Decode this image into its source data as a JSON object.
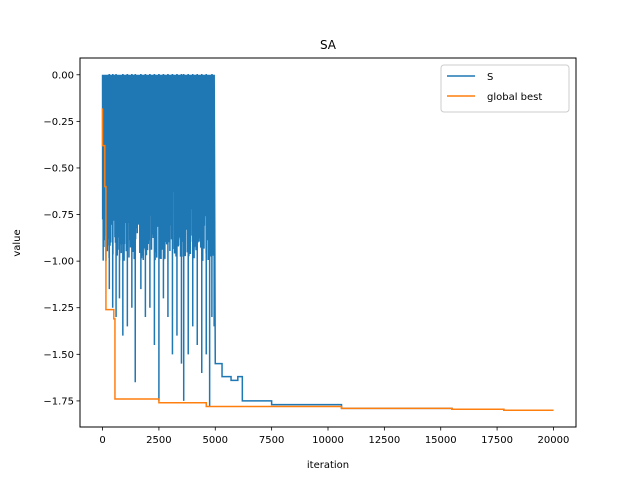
{
  "chart_data": {
    "type": "line",
    "title": "SA",
    "xlabel": "iteration",
    "ylabel": "value",
    "xlim": [
      -1000,
      21000
    ],
    "ylim": [
      -1.89,
      0.09
    ],
    "xticks": [
      0,
      2500,
      5000,
      7500,
      10000,
      12500,
      15000,
      17500,
      20000
    ],
    "xtick_labels": [
      "0",
      "2500",
      "5000",
      "7500",
      "10000",
      "12500",
      "15000",
      "17500",
      "20000"
    ],
    "yticks": [
      0.0,
      -0.25,
      -0.5,
      -0.75,
      -1.0,
      -1.25,
      -1.5,
      -1.75
    ],
    "ytick_labels": [
      "0.00",
      "−0.25",
      "−0.50",
      "−0.75",
      "−1.00",
      "−1.25",
      "−1.50",
      "−1.75"
    ],
    "grid": false,
    "legend_position": "top-right",
    "series": [
      {
        "name": "S",
        "color": "#1f77b4",
        "style": "dense-oscillation",
        "dense_region": {
          "x_start": 0,
          "x_end": 4900,
          "y_top": 0.0,
          "y_typical_min": -1.0
        },
        "spikes": [
          [
            150,
            -1.0
          ],
          [
            300,
            -1.15
          ],
          [
            450,
            -1.25
          ],
          [
            600,
            -1.3
          ],
          [
            750,
            -1.2
          ],
          [
            900,
            -1.4
          ],
          [
            1100,
            -1.35
          ],
          [
            1300,
            -1.25
          ],
          [
            1450,
            -1.65
          ],
          [
            1700,
            -1.15
          ],
          [
            1900,
            -1.3
          ],
          [
            2100,
            -1.25
          ],
          [
            2300,
            -1.45
          ],
          [
            2500,
            -1.75
          ],
          [
            2700,
            -1.2
          ],
          [
            2900,
            -1.3
          ],
          [
            3100,
            -1.5
          ],
          [
            3300,
            -1.4
          ],
          [
            3500,
            -1.55
          ],
          [
            3600,
            -1.75
          ],
          [
            3800,
            -1.5
          ],
          [
            4000,
            -1.35
          ],
          [
            4200,
            -1.45
          ],
          [
            4400,
            -1.6
          ],
          [
            4600,
            -1.5
          ],
          [
            4750,
            -1.78
          ],
          [
            4850,
            -1.3
          ],
          [
            4950,
            -1.35
          ]
        ],
        "tail": [
          [
            5000,
            -1.55
          ],
          [
            5300,
            -1.55
          ],
          [
            5300,
            -1.62
          ],
          [
            5700,
            -1.62
          ],
          [
            5700,
            -1.64
          ],
          [
            6000,
            -1.64
          ],
          [
            6000,
            -1.62
          ],
          [
            6200,
            -1.62
          ],
          [
            6200,
            -1.75
          ],
          [
            7500,
            -1.75
          ],
          [
            7500,
            -1.77
          ],
          [
            10600,
            -1.77
          ],
          [
            10600,
            -1.79
          ],
          [
            15500,
            -1.79
          ],
          [
            15500,
            -1.795
          ],
          [
            17800,
            -1.795
          ],
          [
            17800,
            -1.8
          ],
          [
            20000,
            -1.8
          ]
        ]
      },
      {
        "name": "global best",
        "color": "#ff7f0e",
        "points": [
          [
            0,
            -0.18
          ],
          [
            0,
            -0.38
          ],
          [
            100,
            -0.38
          ],
          [
            100,
            -0.6
          ],
          [
            150,
            -0.6
          ],
          [
            150,
            -1.26
          ],
          [
            500,
            -1.26
          ],
          [
            500,
            -1.31
          ],
          [
            550,
            -1.31
          ],
          [
            550,
            -1.74
          ],
          [
            2500,
            -1.74
          ],
          [
            2500,
            -1.76
          ],
          [
            4600,
            -1.76
          ],
          [
            4600,
            -1.78
          ],
          [
            10600,
            -1.78
          ],
          [
            10600,
            -1.79
          ],
          [
            15500,
            -1.79
          ],
          [
            15500,
            -1.795
          ],
          [
            17800,
            -1.795
          ],
          [
            17800,
            -1.8
          ],
          [
            20000,
            -1.8
          ]
        ]
      }
    ]
  }
}
